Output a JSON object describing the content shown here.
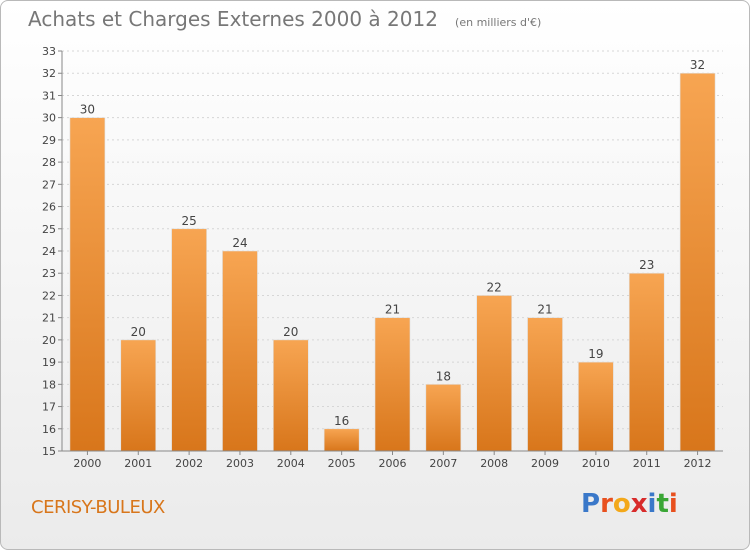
{
  "header": {
    "title": "Achats et Charges Externes 2000 à 2012",
    "subtitle": "(en milliers d'€)"
  },
  "footer": {
    "commune": "CERISY-BULEUX",
    "brand": {
      "text": "Proxiti",
      "letters": [
        {
          "ch": "P",
          "color": "#3a78c9"
        },
        {
          "ch": "r",
          "color": "#e8501e"
        },
        {
          "ch": "o",
          "color": "#f3a81a"
        },
        {
          "ch": "x",
          "color": "#d82b2b"
        },
        {
          "ch": "i",
          "color": "#3a78c9"
        },
        {
          "ch": "t",
          "color": "#3aa635"
        },
        {
          "ch": "i",
          "color": "#e8501e"
        }
      ]
    }
  },
  "colors": {
    "bar_light": "#f7a552",
    "bar_dark": "#d8761b",
    "axis": "#888888",
    "grid": "#d6d6d6"
  },
  "chart_data": {
    "type": "bar",
    "title": "Achats et Charges Externes 2000 à 2012",
    "subtitle": "(en milliers d'€)",
    "categories": [
      "2000",
      "2001",
      "2002",
      "2003",
      "2004",
      "2005",
      "2006",
      "2007",
      "2008",
      "2009",
      "2010",
      "2011",
      "2012"
    ],
    "values": [
      30,
      20,
      25,
      24,
      20,
      16,
      21,
      18,
      22,
      21,
      19,
      23,
      32
    ],
    "ylim": [
      15,
      33
    ],
    "yticks": [
      15,
      16,
      17,
      18,
      19,
      20,
      21,
      22,
      23,
      24,
      25,
      26,
      27,
      28,
      29,
      30,
      31,
      32,
      33
    ],
    "grid": true
  }
}
